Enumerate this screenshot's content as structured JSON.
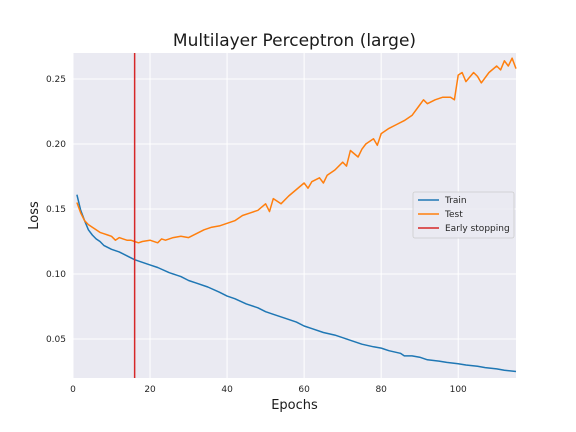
{
  "chart_data": {
    "type": "line",
    "title": "Multilayer Perceptron (large)",
    "xlabel": "Epochs",
    "ylabel": "Loss",
    "xlim": [
      0,
      115
    ],
    "ylim": [
      0.02,
      0.27
    ],
    "xticks": [
      0,
      20,
      40,
      60,
      80,
      100
    ],
    "yticks": [
      0.05,
      0.1,
      0.15,
      0.2,
      0.25
    ],
    "ytick_labels": [
      "0.05",
      "0.10",
      "0.15",
      "0.20",
      "0.25"
    ],
    "grid": true,
    "legend_position": "center-right",
    "series": [
      {
        "name": "Train",
        "color": "#1f77b4",
        "x": [
          1,
          2,
          3,
          4,
          5,
          6,
          7,
          8,
          10,
          12,
          14,
          16,
          18,
          20,
          22,
          25,
          28,
          30,
          32,
          35,
          38,
          40,
          42,
          45,
          48,
          50,
          52,
          55,
          58,
          60,
          62,
          65,
          68,
          70,
          72,
          75,
          78,
          80,
          82,
          85,
          86,
          88,
          90,
          92,
          95,
          97,
          100,
          102,
          105,
          107,
          110,
          112,
          115
        ],
        "y": [
          0.161,
          0.149,
          0.141,
          0.134,
          0.13,
          0.127,
          0.125,
          0.122,
          0.119,
          0.117,
          0.114,
          0.111,
          0.109,
          0.107,
          0.105,
          0.101,
          0.098,
          0.095,
          0.093,
          0.09,
          0.086,
          0.083,
          0.081,
          0.077,
          0.074,
          0.071,
          0.069,
          0.066,
          0.063,
          0.06,
          0.058,
          0.055,
          0.053,
          0.051,
          0.049,
          0.046,
          0.044,
          0.043,
          0.041,
          0.039,
          0.037,
          0.037,
          0.036,
          0.034,
          0.033,
          0.032,
          0.031,
          0.03,
          0.029,
          0.028,
          0.027,
          0.026,
          0.025
        ]
      },
      {
        "name": "Test",
        "color": "#ff7f0e",
        "x": [
          1,
          2,
          3,
          4,
          5,
          6,
          7,
          8,
          9,
          10,
          11,
          12,
          13,
          14,
          15,
          16,
          17,
          18,
          20,
          22,
          23,
          24,
          26,
          28,
          30,
          32,
          34,
          36,
          38,
          40,
          42,
          44,
          46,
          48,
          50,
          51,
          52,
          54,
          56,
          58,
          60,
          61,
          62,
          64,
          65,
          66,
          68,
          70,
          71,
          72,
          74,
          75,
          76,
          78,
          79,
          80,
          82,
          84,
          86,
          88,
          90,
          91,
          92,
          94,
          96,
          98,
          99,
          100,
          101,
          102,
          104,
          105,
          106,
          108,
          110,
          111,
          112,
          113,
          114,
          115
        ],
        "y": [
          0.155,
          0.147,
          0.141,
          0.138,
          0.136,
          0.134,
          0.132,
          0.131,
          0.13,
          0.129,
          0.126,
          0.128,
          0.127,
          0.126,
          0.126,
          0.125,
          0.124,
          0.125,
          0.126,
          0.124,
          0.127,
          0.126,
          0.128,
          0.129,
          0.128,
          0.131,
          0.134,
          0.136,
          0.137,
          0.139,
          0.141,
          0.145,
          0.147,
          0.149,
          0.154,
          0.148,
          0.158,
          0.154,
          0.16,
          0.165,
          0.17,
          0.166,
          0.171,
          0.174,
          0.17,
          0.176,
          0.18,
          0.186,
          0.183,
          0.195,
          0.19,
          0.196,
          0.2,
          0.204,
          0.199,
          0.208,
          0.212,
          0.215,
          0.218,
          0.222,
          0.23,
          0.234,
          0.231,
          0.234,
          0.236,
          0.236,
          0.234,
          0.253,
          0.255,
          0.248,
          0.255,
          0.252,
          0.247,
          0.255,
          0.26,
          0.257,
          0.264,
          0.26,
          0.266,
          0.258
        ]
      }
    ],
    "vlines": [
      {
        "name": "Early stopping",
        "x": 16,
        "color": "#d62728"
      }
    ]
  }
}
